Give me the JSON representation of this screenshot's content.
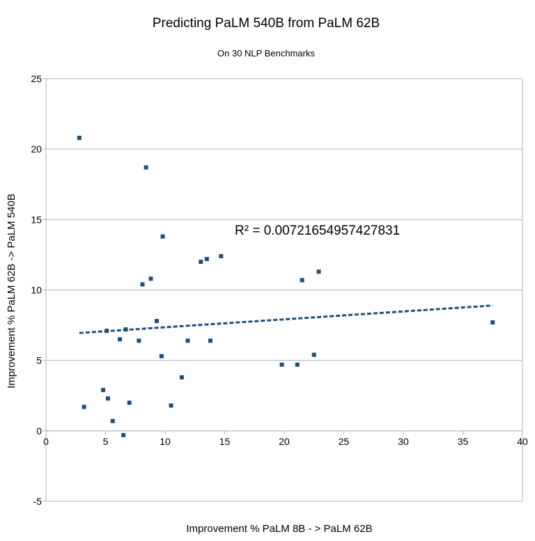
{
  "chart_data": {
    "type": "scatter",
    "title": "Predicting PaLM 540B from PaLM 62B",
    "subtitle": "On 30 NLP Benchmarks",
    "xlabel": "Improvement % PaLM 8B - > PaLM 62B",
    "ylabel": "Improvement % PaLM 62B -> PaLM 540B",
    "xlim": [
      0,
      40
    ],
    "ylim": [
      -5,
      25
    ],
    "x_ticks": [
      0,
      5,
      10,
      15,
      20,
      25,
      30,
      35,
      40
    ],
    "y_ticks": [
      -5,
      0,
      5,
      10,
      15,
      20,
      25
    ],
    "grid": "horizontal",
    "legend": "none",
    "annotation": "R² = 0.00721654957427831",
    "marker_color": "#1f4e79",
    "trendline_color": "#1f4e79",
    "points": [
      {
        "x": 2.8,
        "y": 20.8
      },
      {
        "x": 3.2,
        "y": 1.7
      },
      {
        "x": 4.8,
        "y": 2.9
      },
      {
        "x": 5.1,
        "y": 7.1
      },
      {
        "x": 5.2,
        "y": 2.3
      },
      {
        "x": 5.6,
        "y": 0.7
      },
      {
        "x": 6.2,
        "y": 6.5
      },
      {
        "x": 6.5,
        "y": -0.3
      },
      {
        "x": 6.7,
        "y": 7.2
      },
      {
        "x": 7.0,
        "y": 2.0
      },
      {
        "x": 7.8,
        "y": 6.4
      },
      {
        "x": 8.1,
        "y": 10.4
      },
      {
        "x": 8.4,
        "y": 18.7
      },
      {
        "x": 8.8,
        "y": 10.8
      },
      {
        "x": 9.3,
        "y": 7.8
      },
      {
        "x": 9.7,
        "y": 5.3
      },
      {
        "x": 9.8,
        "y": 13.8
      },
      {
        "x": 10.5,
        "y": 1.8
      },
      {
        "x": 11.4,
        "y": 3.8
      },
      {
        "x": 11.9,
        "y": 6.4
      },
      {
        "x": 13.0,
        "y": 12.0
      },
      {
        "x": 13.5,
        "y": 12.2
      },
      {
        "x": 13.8,
        "y": 6.4
      },
      {
        "x": 14.7,
        "y": 12.4
      },
      {
        "x": 19.8,
        "y": 4.7
      },
      {
        "x": 21.1,
        "y": 4.7
      },
      {
        "x": 21.5,
        "y": 10.7
      },
      {
        "x": 22.5,
        "y": 5.4
      },
      {
        "x": 22.9,
        "y": 11.3
      },
      {
        "x": 37.5,
        "y": 7.7
      }
    ],
    "trendline": {
      "x": [
        2.8,
        37.5
      ],
      "y": [
        6.95,
        8.9
      ]
    }
  }
}
